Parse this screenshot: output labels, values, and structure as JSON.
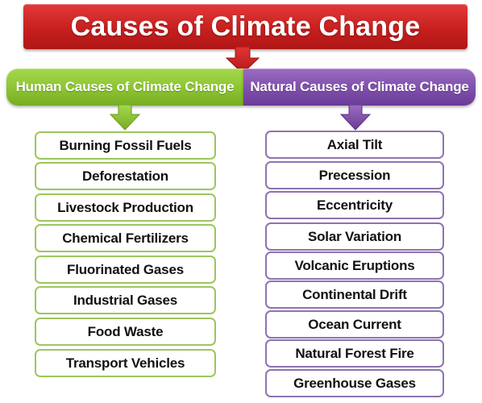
{
  "title": "Causes of Climate Change",
  "branches": {
    "human": {
      "label": "Human Causes of Climate Change",
      "color": "#8cc433",
      "items": [
        "Burning Fossil Fuels",
        "Deforestation",
        "Livestock Production",
        "Chemical Fertilizers",
        "Fluorinated Gases",
        "Industrial Gases",
        "Food Waste",
        "Transport Vehicles"
      ]
    },
    "natural": {
      "label": "Natural Causes of Climate Change",
      "color": "#7e4fab",
      "items": [
        "Axial Tilt",
        "Precession",
        "Eccentricity",
        "Solar Variation",
        "Volcanic Eruptions",
        "Continental Drift",
        "Ocean Current",
        "Natural Forest Fire",
        "Greenhouse Gases"
      ]
    }
  },
  "colors": {
    "title": "#c81f1f"
  }
}
